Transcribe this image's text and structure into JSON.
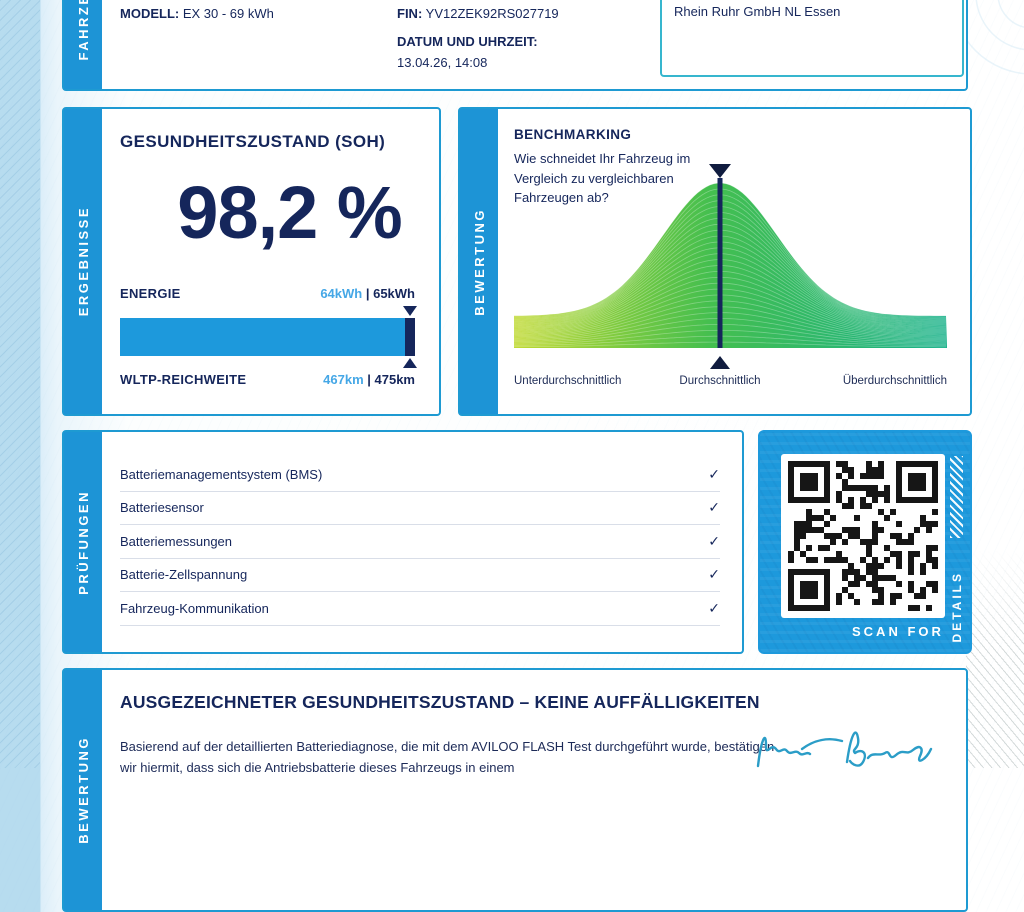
{
  "certificate": {
    "vehicle": {
      "section_label": "FAHRZEUG",
      "model_label": "MODELL:",
      "model_value": "EX 30 - 69 kWh",
      "fin_label": "FIN:",
      "fin_value": "YV12ZEK92RS027719",
      "datetime_label": "DATUM UND UHRZEIT:",
      "datetime_value": "13.04.26, 14:08",
      "dealer": "Rhein Ruhr GmbH NL Essen"
    },
    "results": {
      "section_label": "ERGEBNISSE",
      "heading": "GESUNDHEITSZUSTAND (SOH)",
      "soh_value": "98,2 %",
      "soh_percent": 98.2,
      "energy_label": "ENERGIE",
      "energy_current": "64kWh",
      "energy_total": "| 65kWh",
      "wltp_label": "WLTP-REICHWEITE",
      "wltp_current": "467km",
      "wltp_total": "| 475km"
    },
    "benchmark": {
      "section_label": "BEWERTUNG",
      "heading": "BENCHMARKING",
      "question": "Wie schneidet Ihr Fahrzeug im Vergleich zu vergleichbaren Fahrzeugen ab?",
      "axis_labels": [
        "Unterdurchschnittlich",
        "Durchschnittlich",
        "Überdurchschnittlich"
      ],
      "marker_position": "Durchschnittlich"
    },
    "checks": {
      "section_label": "PRÜFUNGEN",
      "check_glyph": "✓",
      "items": [
        "Batteriemanagementsystem (BMS)",
        "Batteriesensor",
        "Batteriemessungen",
        "Batterie-Zellspannung",
        "Fahrzeug-Kommunikation"
      ]
    },
    "qr": {
      "scan_for": "SCAN FOR",
      "details": "DETAILS"
    },
    "conclusion": {
      "section_label": "BEWERTUNG",
      "heading": "AUSGEZEICHNETER GESUNDHEITSZUSTAND – KEINE AUFFÄLLIGKEITEN",
      "body": "Basierend auf der detaillierten Batteriediagnose, die mit dem AVILOO FLASH Test durchgeführt wurde, bestätigen wir hiermit, dass sich die Antriebsbatterie dieses Fahrzeugs in einem"
    },
    "colors": {
      "navy": "#15265B",
      "blue": "#1D99DC",
      "light_blue_text": "#45A7E6",
      "card_border": "#1E9AD2",
      "teal_border": "#36B6CE",
      "signature_teal": "#2B9DC7",
      "bell_gradient": [
        "#BFD92F",
        "#45BF4F",
        "#17B189"
      ]
    }
  }
}
